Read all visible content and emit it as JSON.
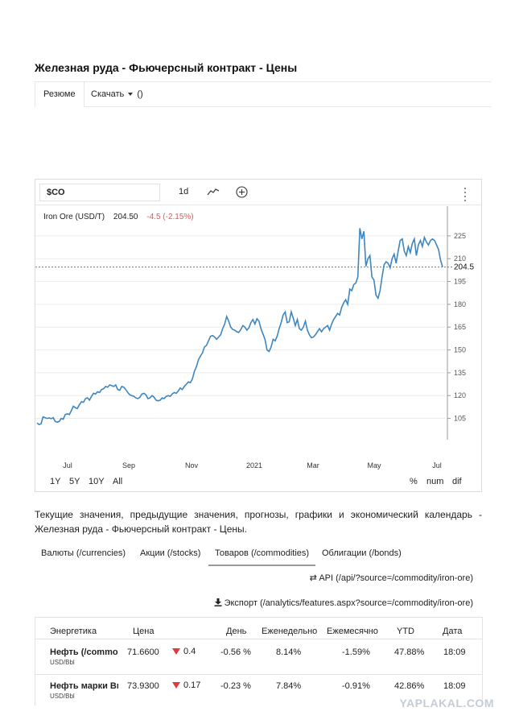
{
  "page": {
    "title": "Железная руда - Фьючерсный контракт - Цены"
  },
  "top_tabs": {
    "resume": "Резюме",
    "download": "Скачать",
    "download_suffix": "()"
  },
  "chart_toolbar": {
    "symbol": "$CO",
    "interval": "1d",
    "icons": [
      "line-chart-icon",
      "plus-circle-icon",
      "kebab-menu-icon"
    ]
  },
  "chart_legend": {
    "name": "Iron Ore (USD/T)",
    "price": "204.50",
    "change": "-4.5 (-2.15%)",
    "change_color": "#e05a5a",
    "last_price_label": "204.5"
  },
  "chart_data": {
    "type": "line",
    "color": "#3f86bf",
    "x_labels": [
      "Jul",
      "Sep",
      "Nov",
      "2021",
      "Mar",
      "May",
      "Jul"
    ],
    "y_ticks": [
      105,
      120,
      135,
      150,
      165,
      180,
      195,
      210,
      225
    ],
    "ylim": [
      91,
      235
    ],
    "last_value": 204.5,
    "grid": true,
    "values": [
      102,
      101,
      101.5,
      106,
      105.5,
      105,
      105.3,
      104.8,
      105.5,
      103,
      102.5,
      103,
      105,
      104.5,
      107.5,
      108,
      107.5,
      110,
      113,
      112,
      111.5,
      114,
      116,
      115.5,
      118,
      118.5,
      117,
      119.5,
      121.5,
      121,
      122.5,
      122,
      124,
      124.5,
      126,
      125.5,
      127,
      126.5,
      126,
      127,
      124,
      123.5,
      126,
      125.5,
      124,
      122,
      120.5,
      120,
      119.5,
      118.5,
      118,
      119,
      121,
      121.5,
      120.5,
      118,
      118.5,
      120,
      119,
      117,
      116.5,
      117,
      118.5,
      118,
      119.5,
      120,
      119.5,
      121,
      122,
      121.5,
      123,
      125,
      124,
      126,
      127.5,
      129,
      128.5,
      131,
      136,
      139,
      143.5,
      146,
      148,
      152,
      153,
      156,
      159,
      159.5,
      158.5,
      157,
      158.5,
      160,
      164,
      167,
      172,
      169,
      165,
      163.5,
      163,
      162,
      161.5,
      163.5,
      166,
      165,
      163,
      164.5,
      168,
      170,
      167,
      170.5,
      169,
      164,
      160.5,
      157,
      150,
      149,
      152,
      157,
      156,
      159,
      164,
      168,
      173,
      175,
      168,
      168.5,
      175,
      171,
      166,
      170,
      164,
      163,
      165,
      169,
      163,
      160,
      158,
      158.5,
      160,
      162,
      164,
      162,
      164,
      165,
      166,
      163,
      167,
      170,
      172,
      174,
      173,
      178,
      181,
      183,
      180,
      190,
      189,
      193,
      194,
      198,
      230,
      223,
      228,
      205,
      210,
      212,
      198,
      196,
      186,
      184,
      189,
      198,
      206,
      208,
      207,
      204,
      210,
      213,
      207,
      215,
      222,
      223,
      215,
      212,
      218,
      214,
      220,
      223,
      212,
      219,
      222,
      218,
      224,
      221,
      219,
      222,
      223,
      222,
      219,
      216,
      209,
      204.5
    ]
  },
  "range_buttons": [
    "1Y",
    "5Y",
    "10Y",
    "All"
  ],
  "scale_buttons": [
    "%",
    "num",
    "dif"
  ],
  "description": "Текущие значения, предыдущие значения, прогнозы, графики и экономический календарь - Железная руда - Фьючерсный контракт - Цены.",
  "category_tabs": [
    "Валюты (/currencies)",
    "Акции (/stocks)",
    "Товаров (/commodities)",
    "Облигации (/bonds)"
  ],
  "links": {
    "api": "API (/api/?source=/commodity/iron-ore)",
    "export": "Экспорт (/analytics/features.aspx?source=/commodity/iron-ore)"
  },
  "table": {
    "headers": [
      "Энергетика",
      "Цена",
      "День",
      "Еженедельно",
      "Ежемесячно",
      "YTD",
      "Дата"
    ],
    "rows": [
      {
        "name": "Нефть (/commodity/crude-oil)",
        "unit": "USD/Bbl",
        "price": "71.6600",
        "change": "0.4",
        "day": "-0.56 %",
        "weekly": "8.14%",
        "monthly": "-1.59%",
        "ytd": "47.88%",
        "date": "18:09"
      },
      {
        "name": "Нефть марки Brent",
        "unit": "USD/Bbl",
        "price": "73.9300",
        "change": "0.17",
        "day": "-0.23 %",
        "weekly": "7.84%",
        "monthly": "-0.91%",
        "ytd": "42.86%",
        "date": "18:09"
      }
    ]
  },
  "watermark": "YAPLAKAL.COM"
}
